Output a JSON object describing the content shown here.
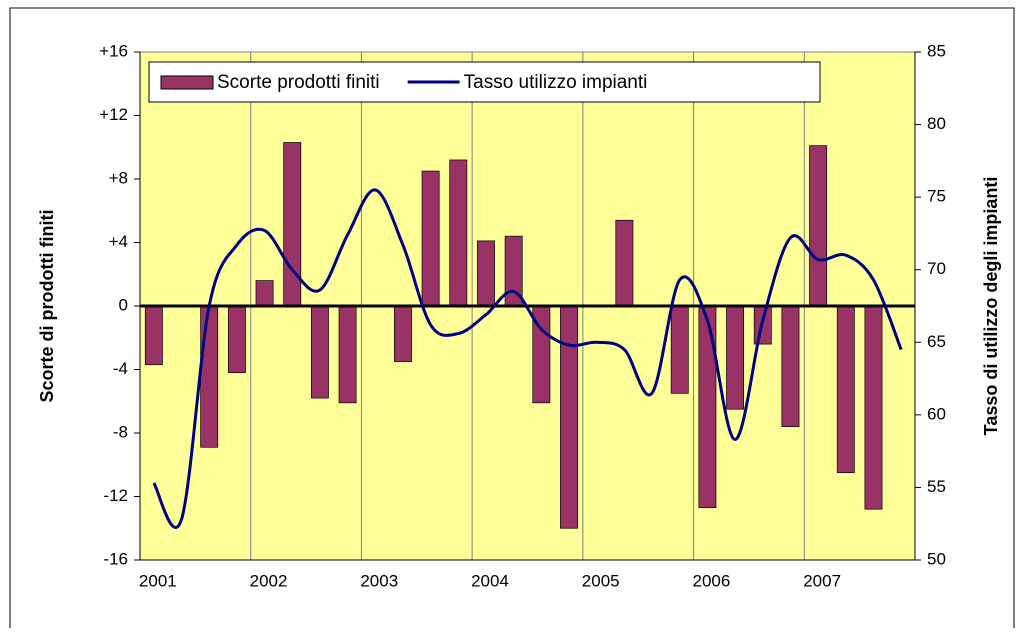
{
  "chart_data": {
    "type": "bar-line",
    "categories": [
      "2001",
      null,
      null,
      null,
      "2002",
      null,
      null,
      null,
      "2003",
      null,
      null,
      null,
      "2004",
      null,
      null,
      null,
      "2005",
      null,
      null,
      null,
      "2006",
      null,
      null,
      null,
      "2007",
      null,
      null,
      null
    ],
    "series": [
      {
        "name": "Scorte prodotti finiti",
        "type": "bar",
        "color": "#993366",
        "values": [
          -3.7,
          null,
          -8.9,
          -4.2,
          1.6,
          10.3,
          -5.8,
          -6.1,
          null,
          -3.5,
          8.5,
          9.2,
          4.1,
          4.4,
          -6.1,
          -14,
          null,
          5.4,
          null,
          -5.5,
          -12.7,
          -6.5,
          -2.4,
          -7.6,
          10.1,
          -10.5,
          -12.8,
          null
        ]
      },
      {
        "name": "Tasso utilizzo impianti",
        "type": "line",
        "axis": "y2",
        "color": "#000080",
        "values": [
          55.3,
          52.8,
          67.5,
          71.7,
          72.7,
          70.0,
          68.6,
          72.4,
          75.5,
          71.7,
          66.2,
          65.6,
          66.9,
          68.5,
          65.9,
          64.8,
          65.0,
          64.5,
          61.5,
          69.3,
          66.5,
          58.3,
          66.5,
          72.2,
          70.7,
          71.0,
          69.3,
          64.5
        ]
      }
    ],
    "ylabel": "Scorte di prodotti finiti",
    "y2label": "Tasso di utilizzo degli impianti",
    "ylim": [
      -16,
      16
    ],
    "yticks": [
      -16,
      -12,
      -8,
      -4,
      0,
      {
        "value": 4,
        "label": "+4"
      },
      {
        "value": 8,
        "label": "+8"
      },
      {
        "value": 12,
        "label": "+12"
      },
      {
        "value": 16,
        "label": "+16"
      }
    ],
    "y2lim": [
      50,
      85
    ],
    "y2ticks": [
      50,
      55,
      60,
      65,
      70,
      75,
      80,
      85
    ],
    "legend": "upper left",
    "background": "#ffff99"
  }
}
